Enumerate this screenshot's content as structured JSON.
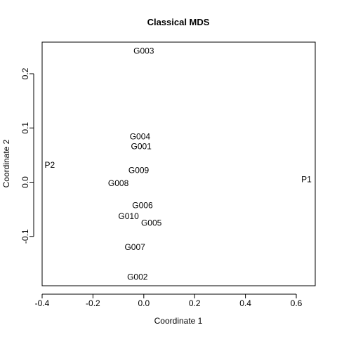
{
  "chart_data": {
    "type": "scatter",
    "title": "Classical MDS",
    "xlabel": "Coordinate 1",
    "ylabel": "Coordinate 2",
    "xlim": [
      -0.4,
      0.68
    ],
    "ylim": [
      -0.19,
      0.26
    ],
    "x_ticks": [
      -0.4,
      -0.2,
      0.0,
      0.2,
      0.4,
      0.6
    ],
    "x_tick_labels": [
      "-0.4",
      "-0.2",
      "0.0",
      "0.2",
      "0.4",
      "0.6"
    ],
    "y_ticks": [
      -0.1,
      0.0,
      0.1,
      0.2
    ],
    "y_tick_labels": [
      "-0.1",
      "0.0",
      "0.1",
      "0.2"
    ],
    "grid": false,
    "marker": "text-labels",
    "points": [
      {
        "label": "G003",
        "x": 0.0,
        "y": 0.242
      },
      {
        "label": "G004",
        "x": -0.015,
        "y": 0.084
      },
      {
        "label": "G001",
        "x": -0.01,
        "y": 0.066
      },
      {
        "label": "P2",
        "x": -0.37,
        "y": 0.032
      },
      {
        "label": "G009",
        "x": -0.02,
        "y": 0.022
      },
      {
        "label": "P1",
        "x": 0.64,
        "y": 0.005
      },
      {
        "label": "G008",
        "x": -0.1,
        "y": -0.002
      },
      {
        "label": "G006",
        "x": -0.005,
        "y": -0.043
      },
      {
        "label": "G010",
        "x": -0.06,
        "y": -0.063
      },
      {
        "label": "G005",
        "x": 0.03,
        "y": -0.075
      },
      {
        "label": "G007",
        "x": -0.035,
        "y": -0.12
      },
      {
        "label": "G002",
        "x": -0.025,
        "y": -0.175
      }
    ]
  }
}
